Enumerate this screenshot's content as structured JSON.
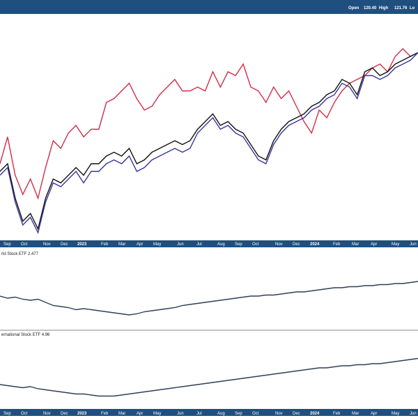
{
  "header": {
    "open_label": "Open",
    "open_value": "120.40",
    "high_label": "High",
    "high_value": "121.76",
    "low_label_visible": "Lo"
  },
  "colors": {
    "bar_blue": "#1f4f7e",
    "series_red": "#d22d48",
    "series_black": "#111111",
    "series_navy": "#38359c",
    "ratio_line": "#2f3f54",
    "grid": "#9a9a9a"
  },
  "axis_labels": [
    "Sep",
    "Oct",
    "Nov",
    "Dec",
    "2023",
    "Feb",
    "Mar",
    "Apr",
    "May",
    "Jun",
    "Jul",
    "Aug",
    "Sep",
    "Oct",
    "Nov",
    "Dec",
    "2024",
    "Feb",
    "Mar",
    "Apr",
    "May",
    "Jun"
  ],
  "axis_years": [
    "2023",
    "2024"
  ],
  "panels": {
    "ratio1_label": "rld Stock ETF 2.477",
    "ratio2_label": "ernational Stock ETF 4.96"
  },
  "chart_data": [
    {
      "type": "line",
      "title": "",
      "x_start": "2022-08-26",
      "x_end": "2024-06-28",
      "ylim": [
        0,
        100
      ],
      "series": [
        {
          "values": [
            40,
            54,
            34,
            24,
            32,
            22,
            38,
            52,
            48,
            56,
            60,
            54,
            58,
            58,
            72,
            74,
            78,
            82,
            74,
            68,
            70,
            76,
            80,
            84,
            78,
            78,
            80,
            78,
            88,
            80,
            88,
            86,
            92,
            80,
            78,
            72,
            80,
            74,
            78,
            70,
            62,
            56,
            68,
            64,
            72,
            78,
            82,
            84,
            86,
            90,
            92,
            88,
            96,
            100,
            96,
            98
          ]
        },
        {
          "values": [
            36,
            40,
            22,
            10,
            14,
            6,
            22,
            32,
            30,
            34,
            38,
            34,
            40,
            40,
            44,
            46,
            44,
            48,
            40,
            42,
            46,
            48,
            50,
            52,
            50,
            52,
            58,
            62,
            66,
            60,
            62,
            58,
            56,
            50,
            44,
            42,
            52,
            58,
            62,
            64,
            66,
            70,
            72,
            76,
            78,
            84,
            82,
            76,
            88,
            90,
            86,
            88,
            92,
            94,
            96,
            98
          ]
        },
        {
          "values": [
            34,
            38,
            20,
            8,
            12,
            4,
            20,
            30,
            28,
            32,
            36,
            30,
            36,
            36,
            40,
            42,
            40,
            44,
            36,
            38,
            42,
            44,
            46,
            48,
            46,
            48,
            56,
            60,
            64,
            58,
            60,
            56,
            54,
            48,
            42,
            40,
            50,
            56,
            60,
            62,
            64,
            68,
            70,
            74,
            76,
            82,
            80,
            74,
            86,
            86,
            84,
            86,
            90,
            92,
            94,
            98
          ]
        }
      ]
    },
    {
      "type": "line",
      "title": "",
      "series": [
        {
          "values": [
            60,
            56,
            58,
            54,
            52,
            54,
            48,
            42,
            40,
            38,
            34,
            36,
            34,
            32,
            30,
            28,
            26,
            24,
            26,
            30,
            32,
            34,
            36,
            38,
            42,
            44,
            46,
            48,
            50,
            52,
            54,
            56,
            58,
            60,
            60,
            62,
            62,
            64,
            66,
            68,
            68,
            70,
            72,
            74,
            76,
            76,
            78,
            78,
            80,
            80,
            82,
            82,
            84,
            84,
            86,
            88
          ]
        }
      ]
    },
    {
      "type": "line",
      "title": "",
      "series": [
        {
          "values": [
            44,
            42,
            40,
            38,
            40,
            36,
            34,
            32,
            30,
            28,
            26,
            26,
            24,
            22,
            22,
            22,
            24,
            26,
            28,
            30,
            32,
            34,
            36,
            38,
            40,
            42,
            44,
            46,
            48,
            50,
            52,
            54,
            56,
            58,
            60,
            62,
            64,
            66,
            68,
            70,
            72,
            74,
            76,
            76,
            78,
            80,
            80,
            82,
            82,
            84,
            84,
            86,
            88,
            90,
            92,
            94
          ]
        }
      ]
    }
  ]
}
